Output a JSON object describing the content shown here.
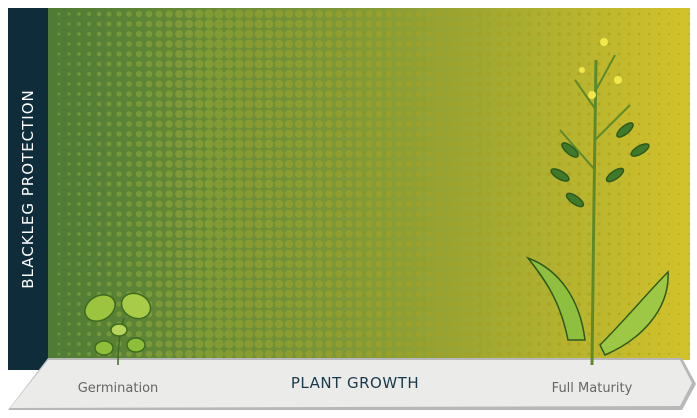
{
  "axis": {
    "y_label": "BLACKLEG PROTECTION",
    "x_label": "PLANT GROWTH",
    "start": "Germination",
    "end": "Full Maturity"
  }
}
